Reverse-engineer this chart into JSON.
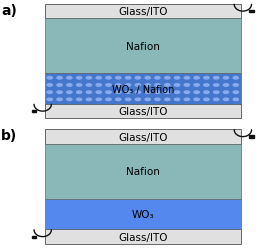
{
  "fig_width": 2.62,
  "fig_height": 2.51,
  "dpi": 100,
  "bg_color": "#ffffff",
  "panel_a_label": "a)",
  "panel_b_label": "b)",
  "glass_ito_color": "#e0e0e0",
  "glass_ito_border": "#666666",
  "nafion_color": "#8ab8b8",
  "nafion_label": "Nafion",
  "wo3_nafion_color_bg": "#4477cc",
  "wo3_nafion_color_dots": "#88aaee",
  "wo3_nafion_label": "WO₃ / Nafion",
  "wo3_color": "#5588ee",
  "wo3_label": "WO₃",
  "glass_ito_label": "Glass/ITO",
  "connector_color": "#111111",
  "label_fontsize": 8,
  "layer_fontsize": 7.5,
  "panel_label_fontsize": 10
}
